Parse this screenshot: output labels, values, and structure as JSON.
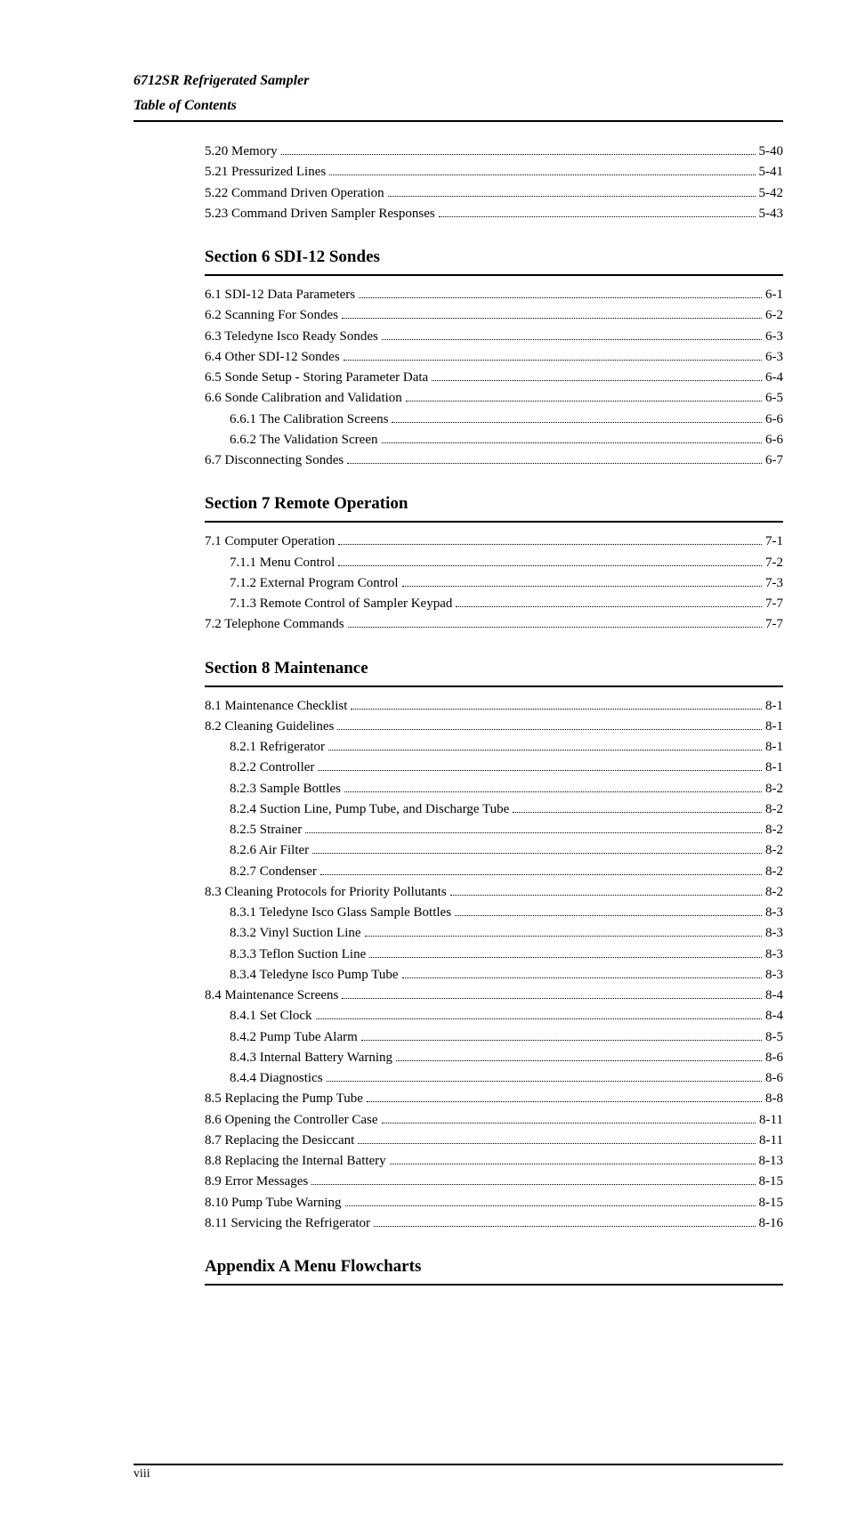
{
  "running_head": {
    "line1": "6712SR Refrigerated Sampler",
    "line2": "Table of Contents"
  },
  "top_entries": [
    {
      "indent": 0,
      "label": "5.20  Memory",
      "page": "5-40"
    },
    {
      "indent": 0,
      "label": "5.21  Pressurized Lines",
      "page": "5-41"
    },
    {
      "indent": 0,
      "label": "5.22  Command Driven Operation",
      "page": "5-42"
    },
    {
      "indent": 0,
      "label": "5.23  Command Driven Sampler Responses",
      "page": "5-43"
    }
  ],
  "sections": [
    {
      "title": "Section 6  SDI-12 Sondes",
      "entries": [
        {
          "indent": 0,
          "label": "6.1  SDI-12 Data Parameters",
          "page": "6-1"
        },
        {
          "indent": 0,
          "label": "6.2  Scanning For Sondes",
          "page": "6-2"
        },
        {
          "indent": 0,
          "label": "6.3  Teledyne Isco Ready Sondes",
          "page": "6-3"
        },
        {
          "indent": 0,
          "label": "6.4  Other SDI-12 Sondes",
          "page": "6-3"
        },
        {
          "indent": 0,
          "label": "6.5  Sonde Setup - Storing Parameter Data",
          "page": "6-4"
        },
        {
          "indent": 0,
          "label": "6.6  Sonde Calibration and Validation",
          "page": "6-5"
        },
        {
          "indent": 1,
          "label": "6.6.1  The Calibration Screens",
          "page": "6-6"
        },
        {
          "indent": 1,
          "label": "6.6.2  The Validation Screen",
          "page": "6-6"
        },
        {
          "indent": 0,
          "label": "6.7  Disconnecting Sondes",
          "page": "6-7"
        }
      ]
    },
    {
      "title": "Section 7  Remote Operation",
      "entries": [
        {
          "indent": 0,
          "label": "7.1  Computer Operation",
          "page": "7-1"
        },
        {
          "indent": 1,
          "label": "7.1.1  Menu Control",
          "page": "7-2"
        },
        {
          "indent": 1,
          "label": "7.1.2  External Program Control",
          "page": "7-3"
        },
        {
          "indent": 1,
          "label": "7.1.3  Remote Control of Sampler Keypad",
          "page": "7-7"
        },
        {
          "indent": 0,
          "label": "7.2  Telephone Commands",
          "page": "7-7"
        }
      ]
    },
    {
      "title": "Section 8  Maintenance",
      "entries": [
        {
          "indent": 0,
          "label": "8.1  Maintenance Checklist",
          "page": "8-1"
        },
        {
          "indent": 0,
          "label": "8.2  Cleaning Guidelines",
          "page": "8-1"
        },
        {
          "indent": 1,
          "label": "8.2.1  Refrigerator",
          "page": "8-1"
        },
        {
          "indent": 1,
          "label": "8.2.2  Controller",
          "page": "8-1"
        },
        {
          "indent": 1,
          "label": "8.2.3  Sample Bottles",
          "page": "8-2"
        },
        {
          "indent": 1,
          "label": "8.2.4  Suction Line, Pump Tube, and Discharge Tube",
          "page": "8-2"
        },
        {
          "indent": 1,
          "label": "8.2.5  Strainer",
          "page": "8-2"
        },
        {
          "indent": 1,
          "label": "8.2.6  Air Filter",
          "page": "8-2"
        },
        {
          "indent": 1,
          "label": "8.2.7  Condenser",
          "page": "8-2"
        },
        {
          "indent": 0,
          "label": "8.3  Cleaning Protocols for Priority Pollutants",
          "page": "8-2"
        },
        {
          "indent": 1,
          "label": "8.3.1  Teledyne Isco Glass Sample Bottles",
          "page": "8-3"
        },
        {
          "indent": 1,
          "label": "8.3.2  Vinyl Suction Line",
          "page": "8-3"
        },
        {
          "indent": 1,
          "label": "8.3.3  Teflon Suction Line",
          "page": "8-3"
        },
        {
          "indent": 1,
          "label": "8.3.4  Teledyne Isco Pump Tube",
          "page": "8-3"
        },
        {
          "indent": 0,
          "label": "8.4  Maintenance Screens",
          "page": "8-4"
        },
        {
          "indent": 1,
          "label": "8.4.1  Set Clock",
          "page": "8-4"
        },
        {
          "indent": 1,
          "label": "8.4.2  Pump Tube Alarm",
          "page": "8-5"
        },
        {
          "indent": 1,
          "label": "8.4.3  Internal Battery Warning",
          "page": "8-6"
        },
        {
          "indent": 1,
          "label": "8.4.4  Diagnostics",
          "page": "8-6"
        },
        {
          "indent": 0,
          "label": "8.5  Replacing the Pump Tube",
          "page": "8-8"
        },
        {
          "indent": 0,
          "label": "8.6  Opening the Controller Case",
          "page": "8-11"
        },
        {
          "indent": 0,
          "label": "8.7  Replacing the Desiccant",
          "page": "8-11"
        },
        {
          "indent": 0,
          "label": "8.8  Replacing the Internal Battery",
          "page": "8-13"
        },
        {
          "indent": 0,
          "label": "8.9  Error Messages",
          "page": "8-15"
        },
        {
          "indent": 0,
          "label": "8.10  Pump Tube Warning",
          "page": "8-15"
        },
        {
          "indent": 0,
          "label": "8.11  Servicing the Refrigerator",
          "page": "8-16"
        }
      ]
    }
  ],
  "appendix_title": "Appendix A  Menu Flowcharts",
  "page_number": "viii"
}
